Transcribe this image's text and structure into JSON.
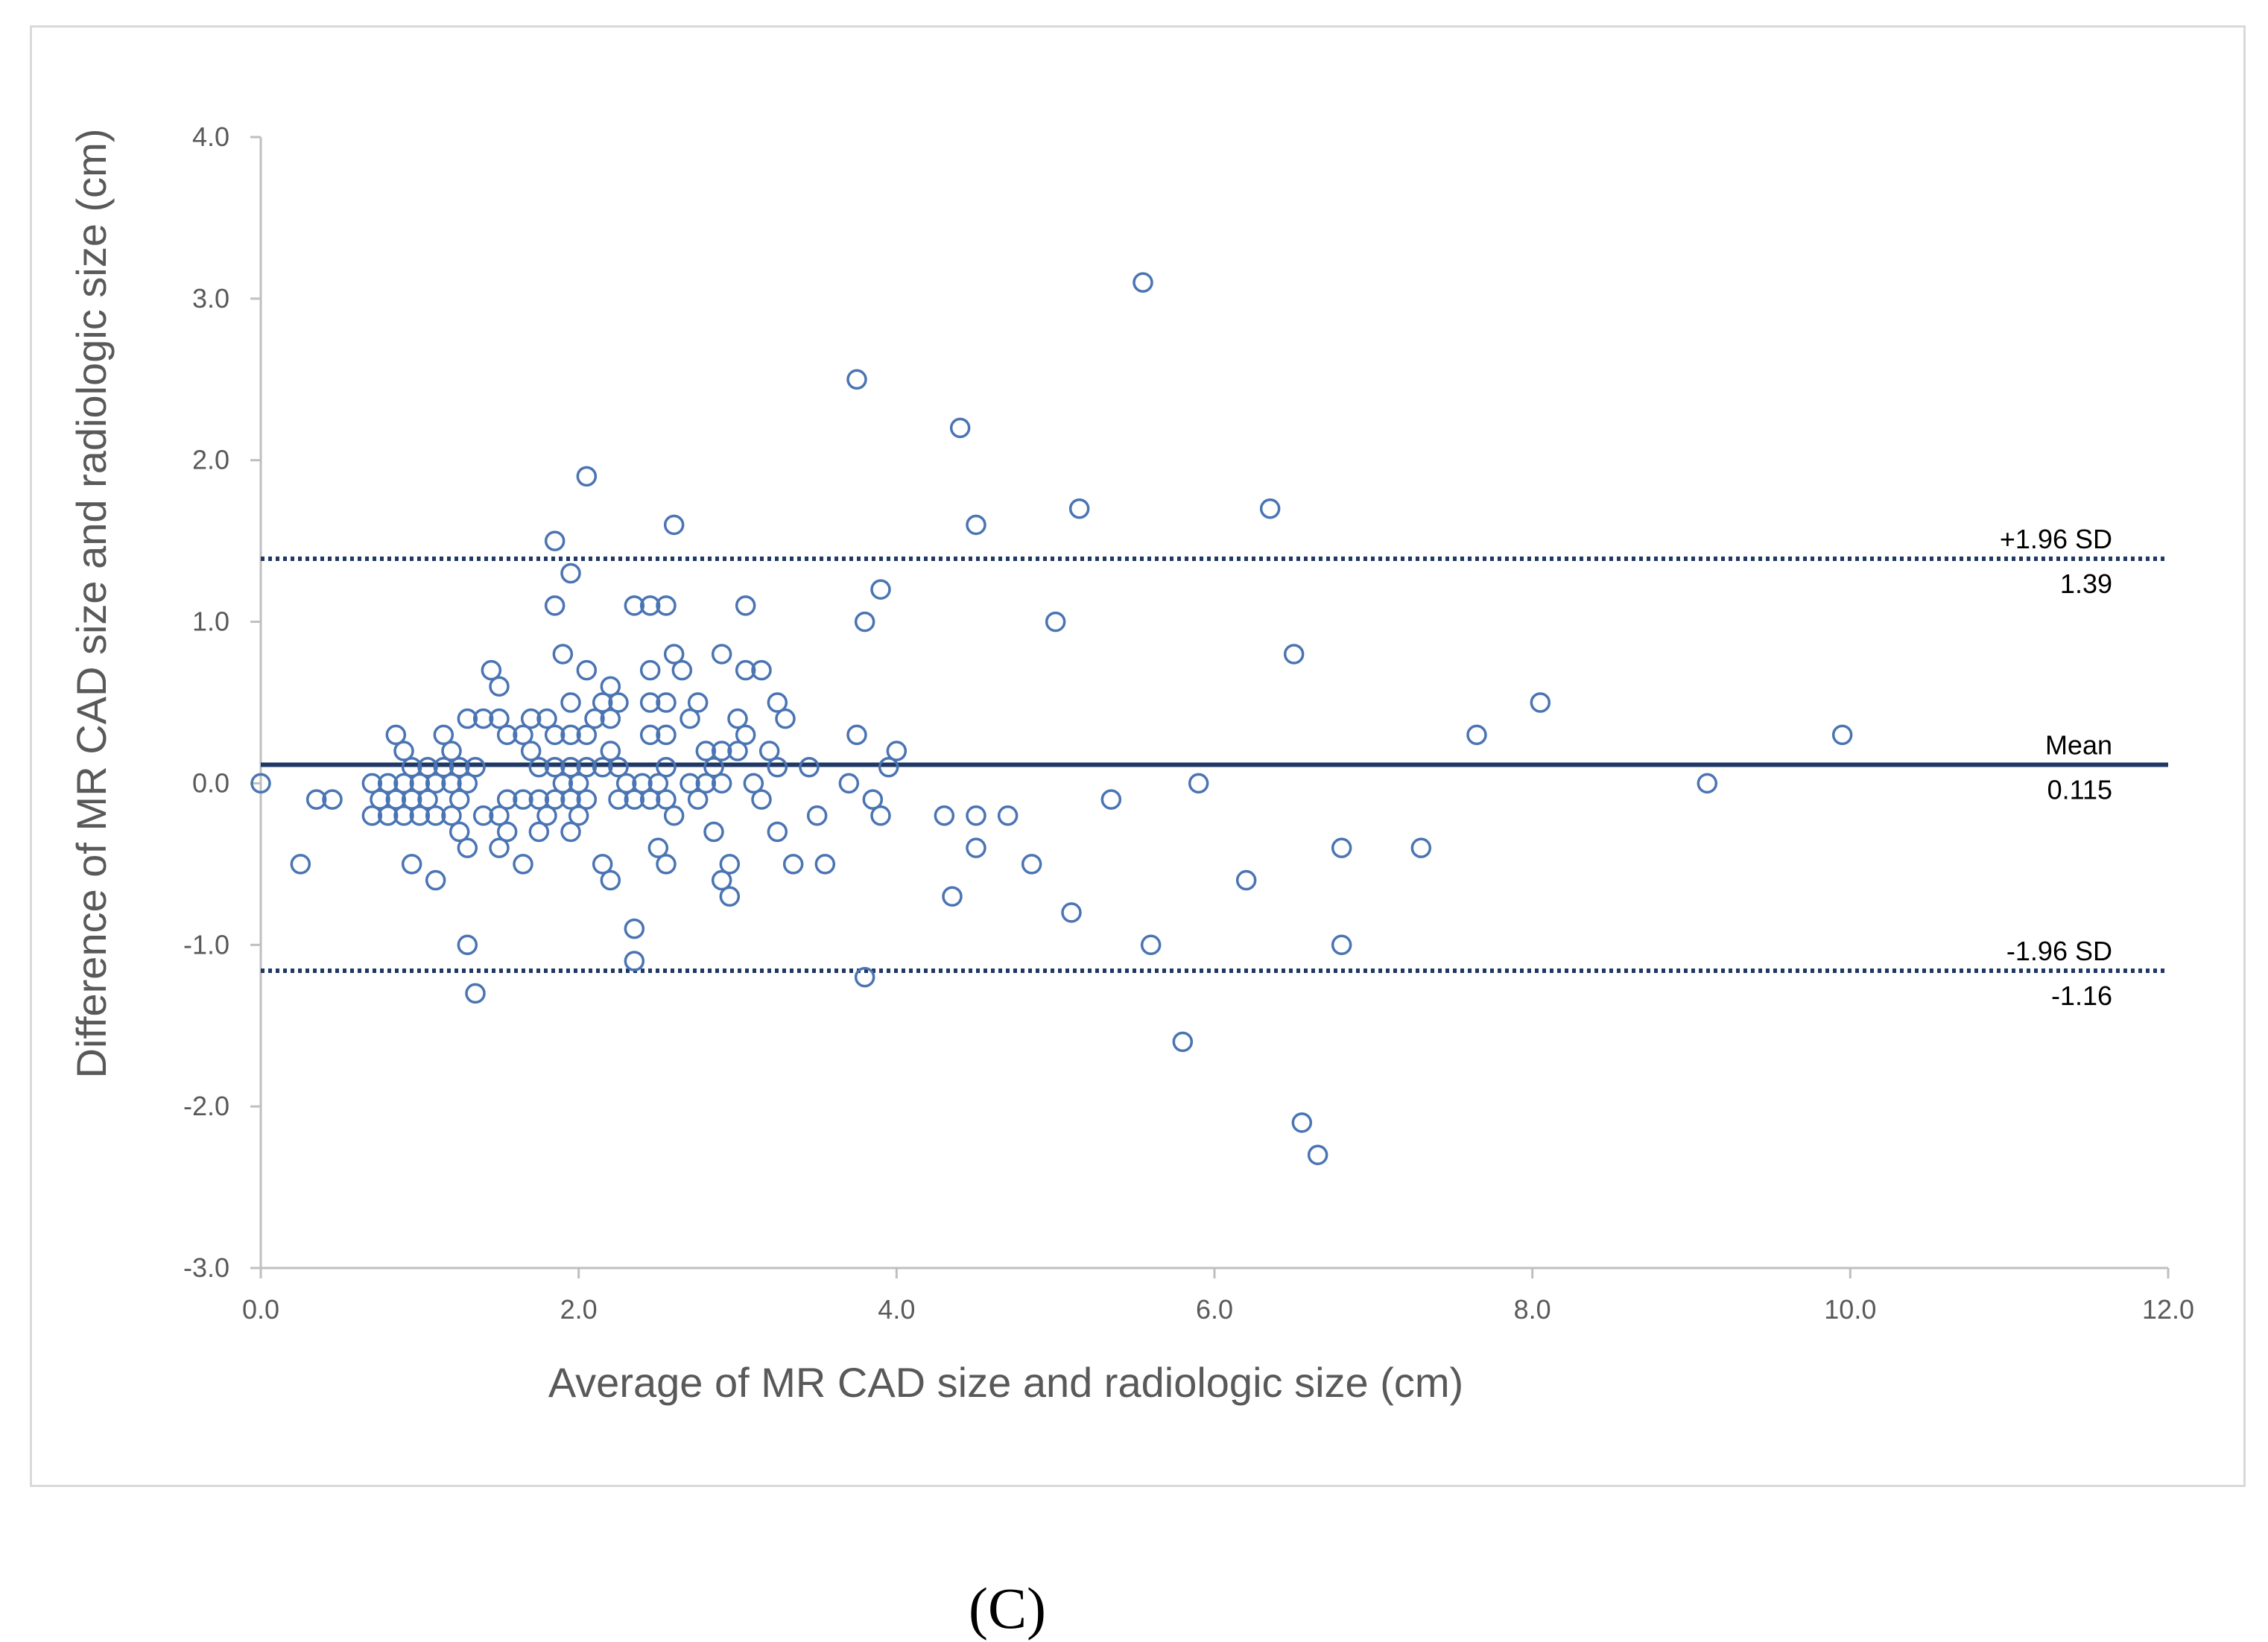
{
  "panel_label": "(C)",
  "colors": {
    "marker": "#4a74b3",
    "mean_line": "#1f3864",
    "limit_line": "#1f3864",
    "axis": "#bfbfbf"
  },
  "chart_data": {
    "type": "scatter",
    "title": "",
    "xlabel": "Average of MR CAD size and radiologic size (cm)",
    "ylabel": "Difference of MR CAD size and radiologic size (cm)",
    "xlim": [
      0,
      12
    ],
    "ylim": [
      -3,
      4
    ],
    "xticks": [
      "0.0",
      "2.0",
      "4.0",
      "6.0",
      "8.0",
      "10.0",
      "12.0"
    ],
    "yticks": [
      "-3.0",
      "-2.0",
      "-1.0",
      "0.0",
      "1.0",
      "2.0",
      "3.0",
      "4.0"
    ],
    "grid": false,
    "reference_lines": [
      {
        "name": "upper-limit",
        "label": "+1.96 SD",
        "value_label": "1.39",
        "y": 1.39,
        "style": "dotted"
      },
      {
        "name": "mean",
        "label": "Mean",
        "value_label": "0.115",
        "y": 0.115,
        "style": "solid"
      },
      {
        "name": "lower-limit",
        "label": "-1.96 SD",
        "value_label": "-1.16",
        "y": -1.16,
        "style": "dotted"
      }
    ],
    "series": [
      {
        "name": "measurements",
        "points": [
          [
            0.0,
            0.0
          ],
          [
            0.25,
            -0.5
          ],
          [
            0.35,
            -0.1
          ],
          [
            0.45,
            -0.1
          ],
          [
            0.7,
            0.0
          ],
          [
            0.7,
            -0.2
          ],
          [
            0.75,
            -0.1
          ],
          [
            0.8,
            0.0
          ],
          [
            0.8,
            -0.2
          ],
          [
            0.85,
            0.3
          ],
          [
            0.85,
            -0.1
          ],
          [
            0.9,
            0.2
          ],
          [
            0.9,
            0.0
          ],
          [
            0.9,
            -0.2
          ],
          [
            0.95,
            0.1
          ],
          [
            0.95,
            -0.1
          ],
          [
            0.95,
            -0.5
          ],
          [
            1.0,
            0.0
          ],
          [
            1.0,
            -0.2
          ],
          [
            1.05,
            0.1
          ],
          [
            1.05,
            -0.1
          ],
          [
            1.1,
            0.0
          ],
          [
            1.1,
            -0.2
          ],
          [
            1.1,
            -0.6
          ],
          [
            1.15,
            0.3
          ],
          [
            1.15,
            0.1
          ],
          [
            1.2,
            0.2
          ],
          [
            1.2,
            0.0
          ],
          [
            1.2,
            -0.2
          ],
          [
            1.25,
            0.1
          ],
          [
            1.25,
            -0.1
          ],
          [
            1.25,
            -0.3
          ],
          [
            1.3,
            0.4
          ],
          [
            1.3,
            0.0
          ],
          [
            1.3,
            -0.4
          ],
          [
            1.3,
            -1.0
          ],
          [
            1.35,
            0.1
          ],
          [
            1.35,
            -1.3
          ],
          [
            1.4,
            0.4
          ],
          [
            1.4,
            -0.2
          ],
          [
            1.45,
            0.7
          ],
          [
            1.5,
            0.6
          ],
          [
            1.5,
            0.4
          ],
          [
            1.5,
            -0.2
          ],
          [
            1.5,
            -0.4
          ],
          [
            1.55,
            0.3
          ],
          [
            1.55,
            -0.1
          ],
          [
            1.55,
            -0.3
          ],
          [
            1.65,
            0.3
          ],
          [
            1.65,
            -0.1
          ],
          [
            1.65,
            -0.5
          ],
          [
            1.7,
            0.4
          ],
          [
            1.7,
            0.2
          ],
          [
            1.75,
            0.1
          ],
          [
            1.75,
            -0.1
          ],
          [
            1.75,
            -0.3
          ],
          [
            1.8,
            0.4
          ],
          [
            1.8,
            -0.2
          ],
          [
            1.85,
            1.5
          ],
          [
            1.85,
            1.1
          ],
          [
            1.85,
            0.3
          ],
          [
            1.85,
            0.1
          ],
          [
            1.85,
            -0.1
          ],
          [
            1.9,
            0.8
          ],
          [
            1.9,
            0.0
          ],
          [
            1.95,
            1.3
          ],
          [
            1.95,
            0.5
          ],
          [
            1.95,
            0.3
          ],
          [
            1.95,
            0.1
          ],
          [
            1.95,
            -0.1
          ],
          [
            1.95,
            -0.3
          ],
          [
            2.0,
            0.0
          ],
          [
            2.0,
            -0.2
          ],
          [
            2.05,
            1.9
          ],
          [
            2.05,
            0.7
          ],
          [
            2.05,
            0.3
          ],
          [
            2.05,
            0.1
          ],
          [
            2.05,
            -0.1
          ],
          [
            2.1,
            0.4
          ],
          [
            2.15,
            0.5
          ],
          [
            2.15,
            0.1
          ],
          [
            2.15,
            -0.5
          ],
          [
            2.2,
            0.6
          ],
          [
            2.2,
            0.4
          ],
          [
            2.2,
            0.2
          ],
          [
            2.2,
            -0.6
          ],
          [
            2.25,
            0.5
          ],
          [
            2.25,
            0.1
          ],
          [
            2.25,
            -0.1
          ],
          [
            2.3,
            0.0
          ],
          [
            2.35,
            1.1
          ],
          [
            2.35,
            -0.1
          ],
          [
            2.35,
            -0.9
          ],
          [
            2.35,
            -1.1
          ],
          [
            2.4,
            0.0
          ],
          [
            2.45,
            1.1
          ],
          [
            2.45,
            0.7
          ],
          [
            2.45,
            0.5
          ],
          [
            2.45,
            0.3
          ],
          [
            2.45,
            -0.1
          ],
          [
            2.5,
            0.0
          ],
          [
            2.5,
            -0.4
          ],
          [
            2.55,
            1.1
          ],
          [
            2.55,
            0.5
          ],
          [
            2.55,
            0.3
          ],
          [
            2.55,
            0.1
          ],
          [
            2.55,
            -0.1
          ],
          [
            2.55,
            -0.5
          ],
          [
            2.6,
            1.6
          ],
          [
            2.6,
            0.8
          ],
          [
            2.6,
            -0.2
          ],
          [
            2.65,
            0.7
          ],
          [
            2.7,
            0.4
          ],
          [
            2.7,
            0.0
          ],
          [
            2.75,
            0.5
          ],
          [
            2.75,
            -0.1
          ],
          [
            2.8,
            0.2
          ],
          [
            2.8,
            0.0
          ],
          [
            2.85,
            0.1
          ],
          [
            2.85,
            -0.3
          ],
          [
            2.9,
            0.8
          ],
          [
            2.9,
            0.2
          ],
          [
            2.9,
            0.0
          ],
          [
            2.9,
            -0.6
          ],
          [
            2.95,
            -0.5
          ],
          [
            2.95,
            -0.7
          ],
          [
            3.0,
            0.4
          ],
          [
            3.0,
            0.2
          ],
          [
            3.05,
            1.1
          ],
          [
            3.05,
            0.7
          ],
          [
            3.05,
            0.3
          ],
          [
            3.1,
            0.0
          ],
          [
            3.15,
            0.7
          ],
          [
            3.15,
            -0.1
          ],
          [
            3.2,
            0.2
          ],
          [
            3.25,
            0.5
          ],
          [
            3.25,
            0.1
          ],
          [
            3.25,
            -0.3
          ],
          [
            3.3,
            0.4
          ],
          [
            3.35,
            -0.5
          ],
          [
            3.45,
            0.1
          ],
          [
            3.5,
            -0.2
          ],
          [
            3.55,
            -0.5
          ],
          [
            3.7,
            0.0
          ],
          [
            3.75,
            2.5
          ],
          [
            3.75,
            0.3
          ],
          [
            3.8,
            1.0
          ],
          [
            3.8,
            -1.2
          ],
          [
            3.85,
            -0.1
          ],
          [
            3.9,
            1.2
          ],
          [
            3.9,
            -0.2
          ],
          [
            3.95,
            0.1
          ],
          [
            4.0,
            0.2
          ],
          [
            4.3,
            -0.2
          ],
          [
            4.35,
            -0.7
          ],
          [
            4.4,
            2.2
          ],
          [
            4.5,
            1.6
          ],
          [
            4.5,
            -0.2
          ],
          [
            4.5,
            -0.4
          ],
          [
            4.7,
            -0.2
          ],
          [
            4.85,
            -0.5
          ],
          [
            5.0,
            1.0
          ],
          [
            5.1,
            -0.8
          ],
          [
            5.15,
            1.7
          ],
          [
            5.35,
            -0.1
          ],
          [
            5.55,
            3.1
          ],
          [
            5.6,
            -1.0
          ],
          [
            5.8,
            -1.6
          ],
          [
            5.9,
            0.0
          ],
          [
            6.2,
            -0.6
          ],
          [
            6.35,
            1.7
          ],
          [
            6.5,
            0.8
          ],
          [
            6.55,
            -2.1
          ],
          [
            6.65,
            -2.3
          ],
          [
            6.8,
            -0.4
          ],
          [
            6.8,
            -1.0
          ],
          [
            7.3,
            -0.4
          ],
          [
            7.65,
            0.3
          ],
          [
            8.05,
            0.5
          ],
          [
            9.1,
            0.0
          ],
          [
            9.95,
            0.3
          ]
        ]
      }
    ]
  }
}
